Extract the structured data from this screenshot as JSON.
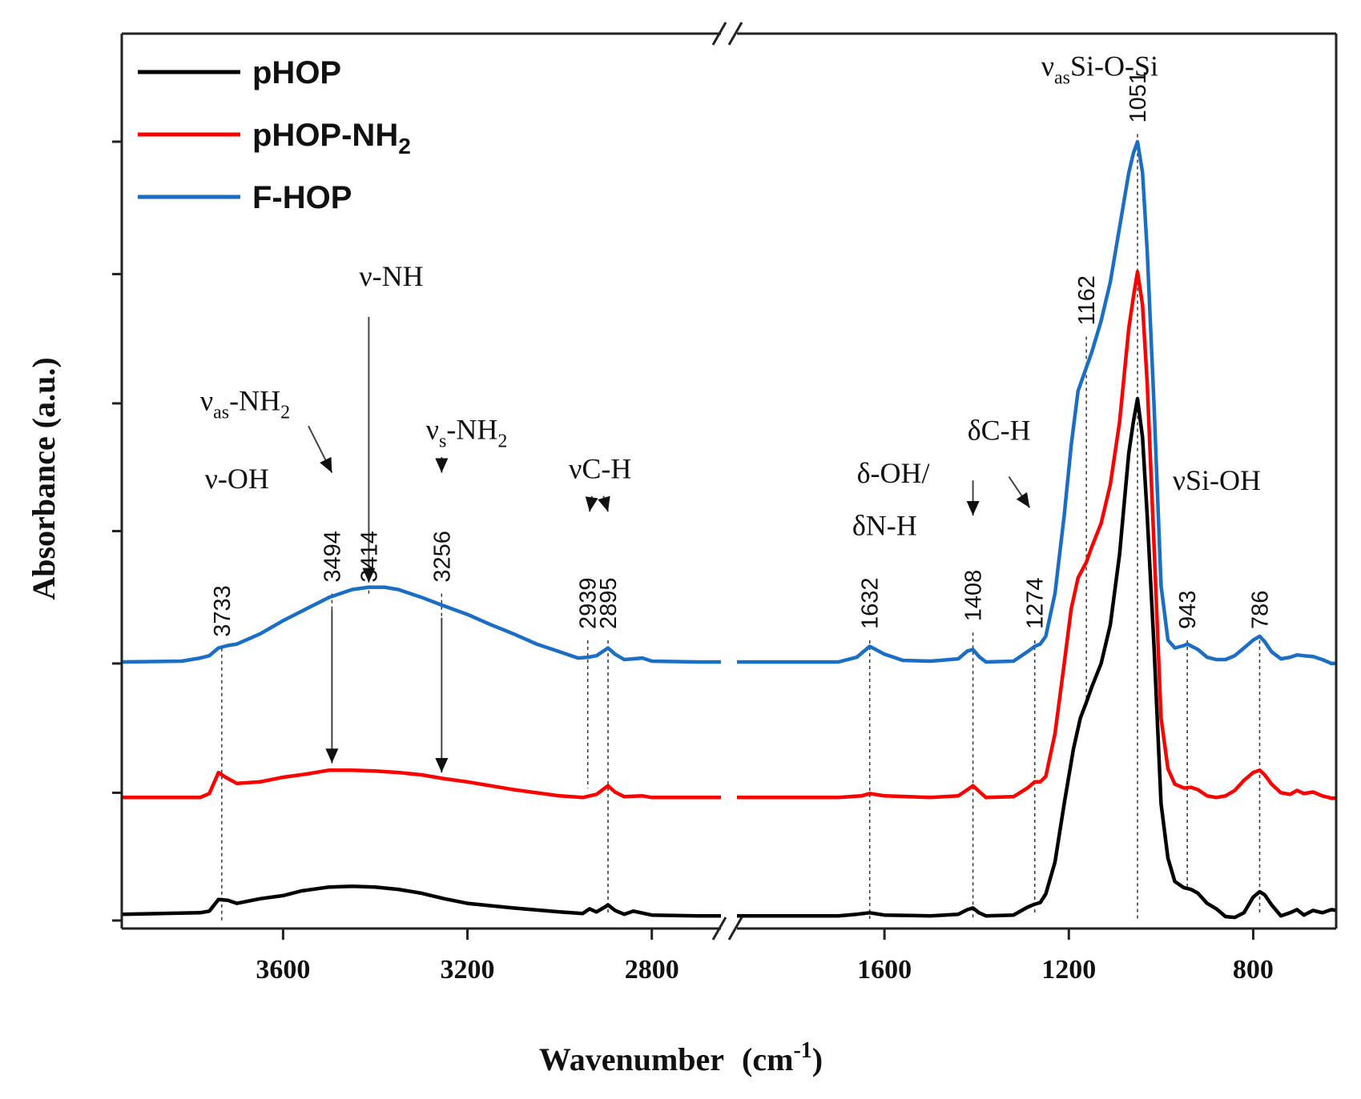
{
  "chart_data": {
    "type": "line",
    "title": "",
    "xlabel": "Wavenumber",
    "xlabel_unit": "(cm",
    "xlabel_unit_exp": "-1",
    "xlabel_unit_close": ")",
    "ylabel": "Absorbance (a.u.)",
    "x_axis_break": true,
    "x_segments": [
      {
        "xlim": [
          3950,
          2650
        ],
        "ticks": [
          3600,
          3200,
          2800
        ]
      },
      {
        "xlim": [
          1920,
          620
        ],
        "ticks": [
          1600,
          1200,
          800
        ]
      }
    ],
    "x_tick_labels": [
      "3600",
      "3200",
      "2800",
      "1600",
      "1200",
      "800"
    ],
    "ylim": [
      0,
      1
    ],
    "y_ticks": [
      0,
      0.164,
      0.33,
      0.5,
      0.664,
      0.83,
      1.0
    ],
    "y_tick_labels_shown": false,
    "legend_position": "top-left",
    "series": [
      {
        "name": "pHOP",
        "color": "#000000",
        "points": [
          [
            3950,
            0.008
          ],
          [
            3780,
            0.01
          ],
          [
            3760,
            0.012
          ],
          [
            3740,
            0.027
          ],
          [
            3720,
            0.026
          ],
          [
            3700,
            0.022
          ],
          [
            3650,
            0.028
          ],
          [
            3600,
            0.032
          ],
          [
            3560,
            0.038
          ],
          [
            3500,
            0.043
          ],
          [
            3450,
            0.044
          ],
          [
            3400,
            0.043
          ],
          [
            3350,
            0.04
          ],
          [
            3300,
            0.035
          ],
          [
            3250,
            0.028
          ],
          [
            3200,
            0.022
          ],
          [
            3100,
            0.016
          ],
          [
            3000,
            0.011
          ],
          [
            2950,
            0.009
          ],
          [
            2935,
            0.015
          ],
          [
            2920,
            0.011
          ],
          [
            2900,
            0.018
          ],
          [
            2895,
            0.02
          ],
          [
            2880,
            0.013
          ],
          [
            2860,
            0.008
          ],
          [
            2840,
            0.012
          ],
          [
            2800,
            0.007
          ],
          [
            2700,
            0.006
          ],
          [
            2650,
            0.006
          ],
          [
            1920,
            0.006
          ],
          [
            1700,
            0.006
          ],
          [
            1660,
            0.008
          ],
          [
            1632,
            0.01
          ],
          [
            1600,
            0.007
          ],
          [
            1500,
            0.006
          ],
          [
            1440,
            0.008
          ],
          [
            1420,
            0.014
          ],
          [
            1408,
            0.016
          ],
          [
            1395,
            0.01
          ],
          [
            1380,
            0.006
          ],
          [
            1320,
            0.007
          ],
          [
            1290,
            0.017
          ],
          [
            1274,
            0.021
          ],
          [
            1262,
            0.023
          ],
          [
            1250,
            0.034
          ],
          [
            1230,
            0.075
          ],
          [
            1210,
            0.15
          ],
          [
            1190,
            0.22
          ],
          [
            1175,
            0.26
          ],
          [
            1162,
            0.28
          ],
          [
            1150,
            0.3
          ],
          [
            1130,
            0.33
          ],
          [
            1110,
            0.38
          ],
          [
            1090,
            0.47
          ],
          [
            1070,
            0.6
          ],
          [
            1060,
            0.64
          ],
          [
            1051,
            0.67
          ],
          [
            1040,
            0.62
          ],
          [
            1030,
            0.52
          ],
          [
            1015,
            0.35
          ],
          [
            1000,
            0.15
          ],
          [
            985,
            0.08
          ],
          [
            970,
            0.05
          ],
          [
            950,
            0.042
          ],
          [
            935,
            0.04
          ],
          [
            920,
            0.035
          ],
          [
            900,
            0.022
          ],
          [
            880,
            0.015
          ],
          [
            860,
            0.005
          ],
          [
            840,
            0.004
          ],
          [
            820,
            0.01
          ],
          [
            800,
            0.03
          ],
          [
            786,
            0.037
          ],
          [
            775,
            0.033
          ],
          [
            760,
            0.02
          ],
          [
            740,
            0.006
          ],
          [
            720,
            0.01
          ],
          [
            705,
            0.014
          ],
          [
            690,
            0.007
          ],
          [
            670,
            0.013
          ],
          [
            650,
            0.01
          ],
          [
            630,
            0.014
          ],
          [
            620,
            0.013
          ]
        ]
      },
      {
        "name": "pHOP-NH",
        "name_sub": "2",
        "color": "#ff0000",
        "points": [
          [
            3950,
            0.158
          ],
          [
            3780,
            0.158
          ],
          [
            3760,
            0.163
          ],
          [
            3740,
            0.19
          ],
          [
            3725,
            0.184
          ],
          [
            3700,
            0.176
          ],
          [
            3650,
            0.178
          ],
          [
            3600,
            0.184
          ],
          [
            3550,
            0.188
          ],
          [
            3500,
            0.193
          ],
          [
            3450,
            0.193
          ],
          [
            3400,
            0.192
          ],
          [
            3350,
            0.19
          ],
          [
            3300,
            0.187
          ],
          [
            3250,
            0.182
          ],
          [
            3200,
            0.178
          ],
          [
            3100,
            0.168
          ],
          [
            3000,
            0.16
          ],
          [
            2950,
            0.158
          ],
          [
            2920,
            0.162
          ],
          [
            2895,
            0.173
          ],
          [
            2880,
            0.165
          ],
          [
            2860,
            0.159
          ],
          [
            2820,
            0.16
          ],
          [
            2800,
            0.158
          ],
          [
            2700,
            0.158
          ],
          [
            2650,
            0.158
          ],
          [
            1920,
            0.158
          ],
          [
            1700,
            0.158
          ],
          [
            1650,
            0.16
          ],
          [
            1632,
            0.163
          ],
          [
            1600,
            0.16
          ],
          [
            1500,
            0.158
          ],
          [
            1440,
            0.16
          ],
          [
            1420,
            0.168
          ],
          [
            1408,
            0.173
          ],
          [
            1395,
            0.166
          ],
          [
            1380,
            0.158
          ],
          [
            1320,
            0.159
          ],
          [
            1290,
            0.17
          ],
          [
            1274,
            0.178
          ],
          [
            1262,
            0.178
          ],
          [
            1250,
            0.185
          ],
          [
            1230,
            0.24
          ],
          [
            1210,
            0.33
          ],
          [
            1195,
            0.4
          ],
          [
            1180,
            0.44
          ],
          [
            1162,
            0.46
          ],
          [
            1150,
            0.48
          ],
          [
            1130,
            0.51
          ],
          [
            1110,
            0.56
          ],
          [
            1090,
            0.64
          ],
          [
            1070,
            0.76
          ],
          [
            1060,
            0.8
          ],
          [
            1051,
            0.833
          ],
          [
            1040,
            0.79
          ],
          [
            1030,
            0.69
          ],
          [
            1015,
            0.48
          ],
          [
            1000,
            0.26
          ],
          [
            985,
            0.195
          ],
          [
            970,
            0.175
          ],
          [
            950,
            0.17
          ],
          [
            935,
            0.171
          ],
          [
            920,
            0.168
          ],
          [
            900,
            0.16
          ],
          [
            880,
            0.158
          ],
          [
            860,
            0.16
          ],
          [
            840,
            0.167
          ],
          [
            820,
            0.18
          ],
          [
            800,
            0.19
          ],
          [
            786,
            0.193
          ],
          [
            775,
            0.187
          ],
          [
            760,
            0.175
          ],
          [
            740,
            0.164
          ],
          [
            720,
            0.162
          ],
          [
            705,
            0.167
          ],
          [
            690,
            0.163
          ],
          [
            670,
            0.165
          ],
          [
            650,
            0.16
          ],
          [
            630,
            0.157
          ],
          [
            620,
            0.157
          ]
        ]
      },
      {
        "name": "F-HOP",
        "color": "#1a6fc4",
        "points": [
          [
            3950,
            0.332
          ],
          [
            3820,
            0.333
          ],
          [
            3780,
            0.337
          ],
          [
            3760,
            0.34
          ],
          [
            3740,
            0.35
          ],
          [
            3720,
            0.353
          ],
          [
            3700,
            0.355
          ],
          [
            3650,
            0.368
          ],
          [
            3600,
            0.385
          ],
          [
            3550,
            0.4
          ],
          [
            3500,
            0.415
          ],
          [
            3450,
            0.425
          ],
          [
            3414,
            0.428
          ],
          [
            3380,
            0.428
          ],
          [
            3350,
            0.425
          ],
          [
            3300,
            0.415
          ],
          [
            3256,
            0.405
          ],
          [
            3200,
            0.393
          ],
          [
            3150,
            0.38
          ],
          [
            3100,
            0.368
          ],
          [
            3050,
            0.355
          ],
          [
            3000,
            0.345
          ],
          [
            2960,
            0.337
          ],
          [
            2939,
            0.338
          ],
          [
            2920,
            0.34
          ],
          [
            2895,
            0.35
          ],
          [
            2880,
            0.342
          ],
          [
            2860,
            0.335
          ],
          [
            2820,
            0.337
          ],
          [
            2800,
            0.333
          ],
          [
            2700,
            0.332
          ],
          [
            2650,
            0.332
          ],
          [
            1920,
            0.332
          ],
          [
            1700,
            0.332
          ],
          [
            1660,
            0.338
          ],
          [
            1632,
            0.352
          ],
          [
            1600,
            0.342
          ],
          [
            1560,
            0.334
          ],
          [
            1500,
            0.333
          ],
          [
            1440,
            0.336
          ],
          [
            1420,
            0.346
          ],
          [
            1408,
            0.348
          ],
          [
            1395,
            0.339
          ],
          [
            1380,
            0.332
          ],
          [
            1320,
            0.333
          ],
          [
            1290,
            0.345
          ],
          [
            1274,
            0.352
          ],
          [
            1262,
            0.355
          ],
          [
            1250,
            0.365
          ],
          [
            1230,
            0.42
          ],
          [
            1210,
            0.52
          ],
          [
            1195,
            0.61
          ],
          [
            1180,
            0.68
          ],
          [
            1162,
            0.71
          ],
          [
            1150,
            0.73
          ],
          [
            1130,
            0.77
          ],
          [
            1110,
            0.82
          ],
          [
            1090,
            0.89
          ],
          [
            1070,
            0.96
          ],
          [
            1060,
            0.985
          ],
          [
            1051,
            1.0
          ],
          [
            1040,
            0.96
          ],
          [
            1030,
            0.86
          ],
          [
            1015,
            0.66
          ],
          [
            1000,
            0.43
          ],
          [
            985,
            0.36
          ],
          [
            970,
            0.35
          ],
          [
            950,
            0.353
          ],
          [
            943,
            0.355
          ],
          [
            920,
            0.348
          ],
          [
            900,
            0.338
          ],
          [
            880,
            0.335
          ],
          [
            860,
            0.335
          ],
          [
            840,
            0.34
          ],
          [
            820,
            0.35
          ],
          [
            800,
            0.36
          ],
          [
            786,
            0.365
          ],
          [
            775,
            0.358
          ],
          [
            760,
            0.345
          ],
          [
            740,
            0.336
          ],
          [
            720,
            0.338
          ],
          [
            705,
            0.341
          ],
          [
            690,
            0.34
          ],
          [
            670,
            0.339
          ],
          [
            650,
            0.335
          ],
          [
            630,
            0.33
          ],
          [
            620,
            0.33
          ]
        ]
      }
    ],
    "peak_labels": [
      {
        "text": "3733",
        "x": 3733,
        "ytop": 0.36,
        "ybottom": 0.0
      },
      {
        "text": "3494",
        "x": 3494,
        "ytop": 0.43,
        "ybottom": 0.2
      },
      {
        "text": "3414",
        "x": 3414,
        "ytop": 0.43,
        "ybottom": 0.43
      },
      {
        "text": "3256",
        "x": 3256,
        "ytop": 0.43,
        "ybottom": 0.19
      },
      {
        "text": "2939",
        "x": 2939,
        "ytop": 0.37,
        "ybottom": 0.17
      },
      {
        "text": "2895",
        "x": 2895,
        "ytop": 0.37,
        "ybottom": 0.01
      },
      {
        "text": "1632",
        "x": 1632,
        "ytop": 0.37,
        "ybottom": 0.0
      },
      {
        "text": "1408",
        "x": 1408,
        "ytop": 0.38,
        "ybottom": 0.0
      },
      {
        "text": "1274",
        "x": 1274,
        "ytop": 0.37,
        "ybottom": 0.01
      },
      {
        "text": "1162",
        "x": 1162,
        "ytop": 0.76,
        "ybottom": 0.28
      },
      {
        "text": "1051",
        "x": 1051,
        "ytop": 1.02,
        "ybottom": 0.0
      },
      {
        "text": "943",
        "x": 943,
        "ytop": 0.37,
        "ybottom": 0.04
      },
      {
        "text": "786",
        "x": 786,
        "ytop": 0.37,
        "ybottom": 0.01
      }
    ],
    "annotations": [
      {
        "text": "ν-OH",
        "sub": "",
        "rest": "",
        "x": 3770,
        "y": 0.555
      },
      {
        "text": "ν",
        "sub": "as",
        "rest": "-NH",
        "sub2": "2",
        "x": 3780,
        "y": 0.655
      },
      {
        "text": "ν-NH",
        "sub": "",
        "rest": "",
        "x": 3435,
        "y": 0.815
      },
      {
        "text": "ν",
        "sub": "s",
        "rest": "-NH",
        "sub2": "2",
        "x": 3290,
        "y": 0.618
      },
      {
        "text": "νC-H",
        "sub": "",
        "rest": "",
        "x": 2980,
        "y": 0.568
      },
      {
        "text": "δ-OH/",
        "sub": "",
        "rest": "",
        "x": 1660,
        "y": 0.562
      },
      {
        "text": "δN-H",
        "sub": "",
        "rest": "",
        "x": 1670,
        "y": 0.495
      },
      {
        "text": "δC-H",
        "sub": "",
        "rest": "",
        "x": 1420,
        "y": 0.617
      },
      {
        "text": "ν",
        "sub": "as",
        "rest": "Si-O-Si",
        "sub2": "",
        "x": 1260,
        "y": 1.085
      },
      {
        "text": "νSi-OH",
        "sub": "",
        "rest": "",
        "x": 975,
        "y": 0.553
      }
    ]
  }
}
